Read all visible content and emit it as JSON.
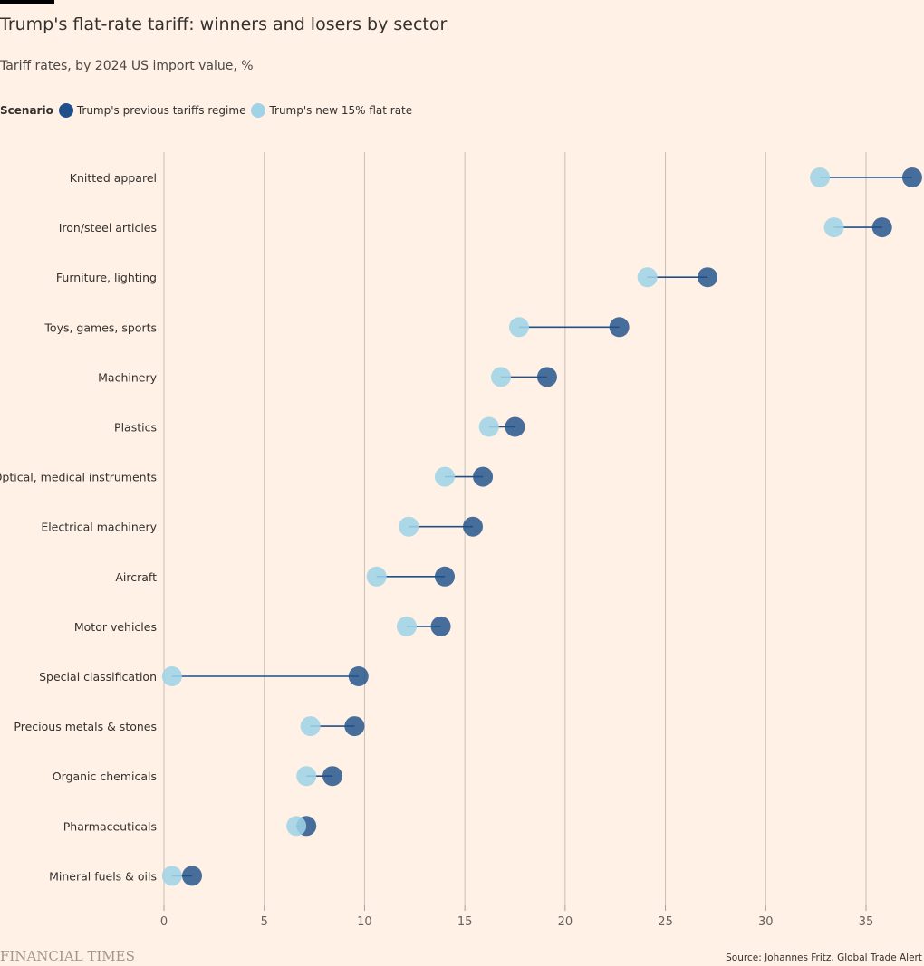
{
  "header": {
    "title": "Trump's flat-rate tariff: winners and losers by sector",
    "subtitle": "Tariff rates, by 2024 US import value, %"
  },
  "legend": {
    "label": "Scenario",
    "items": [
      {
        "name": "Trump's previous tariffs regime",
        "color": "#1f5089"
      },
      {
        "name": "Trump's new 15% flat rate",
        "color": "#9fd3e6"
      }
    ]
  },
  "footer": {
    "brand": "FINANCIAL TIMES",
    "source": "Source: Johannes Fritz, Global Trade Alert"
  },
  "chart_data": {
    "type": "dumbbell",
    "title": "Trump's flat-rate tariff: winners and losers by sector",
    "subtitle": "Tariff rates, by 2024 US import value, %",
    "xlabel": "",
    "ylabel": "",
    "xlim": [
      0,
      37.5
    ],
    "xticks": [
      0,
      5,
      10,
      15,
      20,
      25,
      30,
      35
    ],
    "grid": true,
    "legend_position": "top-left",
    "categories": [
      "Knitted apparel",
      "Iron/steel articles",
      "Furniture, lighting",
      "Toys, games, sports",
      "Machinery",
      "Plastics",
      "Optical, medical instruments",
      "Electrical machinery",
      "Aircraft",
      "Motor vehicles",
      "Special classification",
      "Precious metals & stones",
      "Organic chemicals",
      "Pharmaceuticals",
      "Mineral fuels & oils"
    ],
    "series": [
      {
        "name": "Trump's previous tariffs regime",
        "color": "#1f5089",
        "values": [
          37.3,
          35.8,
          27.1,
          22.7,
          19.1,
          17.5,
          15.9,
          15.4,
          14.0,
          13.8,
          9.7,
          9.5,
          8.4,
          7.1,
          1.4
        ]
      },
      {
        "name": "Trump's new 15% flat rate",
        "color": "#9fd3e6",
        "values": [
          32.7,
          33.4,
          24.1,
          17.7,
          16.8,
          16.2,
          14.0,
          12.2,
          10.6,
          12.1,
          0.4,
          7.3,
          7.1,
          6.6,
          0.4
        ]
      }
    ]
  }
}
